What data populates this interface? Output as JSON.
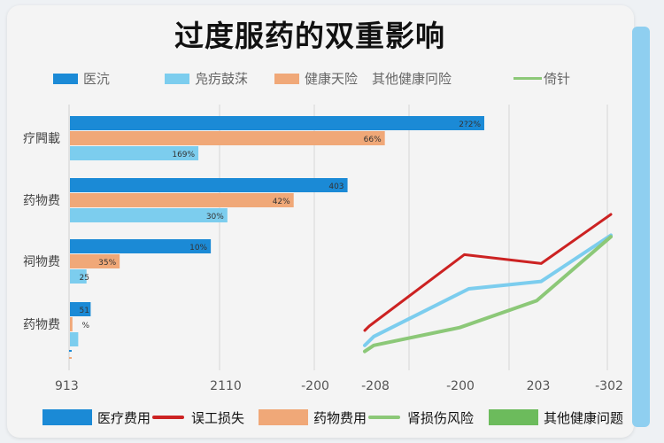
{
  "title": "过度服药的双重影响",
  "legend_top": [
    {
      "label": "医沆",
      "color": "#1b8ad6",
      "kind": "box"
    },
    {
      "label": "凫疠鼓莯",
      "color": "#7ccdee",
      "kind": "box"
    },
    {
      "label": "健康天险",
      "color": "#f0a878",
      "kind": "box"
    },
    {
      "label": "其他健康冋险",
      "color": "#f0a878",
      "kind": "none"
    },
    {
      "label": "倚针",
      "color": "#8cc878",
      "kind": "line"
    }
  ],
  "legend_bottom": [
    {
      "label": "医疗费用",
      "color": "#1b8ad6",
      "kind": "box"
    },
    {
      "label": "误工损失",
      "color": "#cc2222",
      "kind": "line"
    },
    {
      "label": "药物费用",
      "color": "#f0a878",
      "kind": "box"
    },
    {
      "label": "肾损伤风险",
      "color": "#8cc878",
      "kind": "line"
    },
    {
      "label": "其他健康问题",
      "color": "#6cbb5c",
      "kind": "box"
    }
  ],
  "chart_data": [
    {
      "type": "bar",
      "orientation": "horizontal",
      "categories": [
        "疗闁載",
        "药物费",
        "祠物费",
        "药物费"
      ],
      "x_tick_labels": [
        "913",
        "2110",
        "-200"
      ],
      "series": [
        {
          "color": "#1b8ad6",
          "values": [
            100,
            67,
            34,
            5
          ],
          "labels": [
            "2?2%",
            "403",
            "10%",
            "51"
          ]
        },
        {
          "color": "#f0a878",
          "values": [
            76,
            54,
            12,
            0.6
          ],
          "labels": [
            "66%",
            "42%",
            "35%",
            "%"
          ]
        },
        {
          "color": "#7ccdee",
          "values": [
            31,
            38,
            4,
            2
          ],
          "labels": [
            "169%",
            "30%",
            "25",
            ""
          ]
        }
      ]
    },
    {
      "type": "line",
      "x_tick_labels": [
        "-208",
        "-200",
        "203",
        "-302"
      ],
      "series": [
        {
          "color": "#cc2222",
          "points": [
            [
              0,
              22
            ],
            [
              0.05,
              25
            ],
            [
              1.1,
              73
            ],
            [
              1.95,
              67
            ],
            [
              2.72,
              100
            ]
          ]
        },
        {
          "color": "#7ccdee",
          "points": [
            [
              0,
              12
            ],
            [
              0.1,
              18
            ],
            [
              1.15,
              50
            ],
            [
              1.95,
              55
            ],
            [
              2.72,
              86
            ]
          ]
        },
        {
          "color": "#8cc878",
          "points": [
            [
              0,
              8
            ],
            [
              0.1,
              12
            ],
            [
              1.05,
              24
            ],
            [
              1.9,
              42
            ],
            [
              2.72,
              85
            ]
          ]
        }
      ]
    }
  ]
}
